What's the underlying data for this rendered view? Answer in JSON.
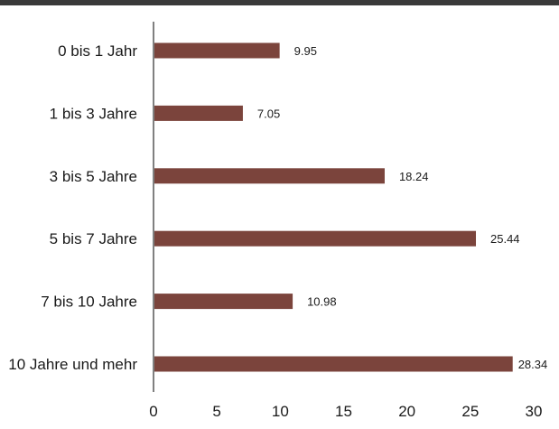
{
  "chart_data": {
    "type": "bar",
    "orientation": "horizontal",
    "title": "",
    "xlabel": "",
    "ylabel": "",
    "categories": [
      "0 bis 1 Jahr",
      "1 bis 3 Jahre",
      "3 bis 5 Jahre",
      "5 bis 7 Jahre",
      "7 bis 10 Jahre",
      "10 Jahre und mehr"
    ],
    "values": [
      9.95,
      7.05,
      18.24,
      25.44,
      10.98,
      28.34
    ],
    "value_labels": [
      "9.95",
      "7.05",
      "18.24",
      "25.44",
      "10.98",
      "28.34"
    ],
    "xlim": [
      0,
      30
    ],
    "xticks": [
      "0",
      "5",
      "10",
      "15",
      "20",
      "25",
      "30"
    ],
    "grid": false,
    "legend": "none",
    "bar_color": "#7b443c",
    "top_bar_color": "#3a3a3a"
  }
}
